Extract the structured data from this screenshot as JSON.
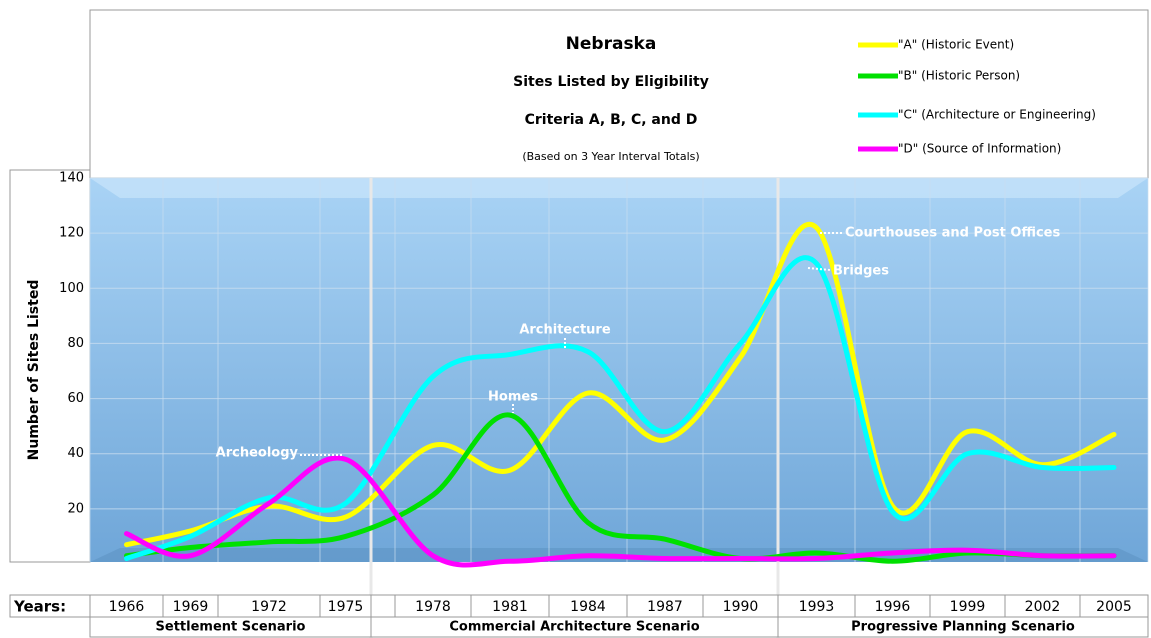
{
  "chart_data": {
    "type": "line",
    "title": "Nebraska",
    "subtitle": "Sites Listed by Eligibility",
    "subtitle2": "Criteria A, B, C, and D",
    "note": "(Based on 3 Year Interval Totals)",
    "y_label": "Number of Sites Listed",
    "x_label": "Years:",
    "categories": [
      "1966",
      "1969",
      "1972",
      "1975",
      "1978",
      "1981",
      "1984",
      "1987",
      "1990",
      "1993",
      "1996",
      "1999",
      "2002",
      "2005"
    ],
    "series": [
      {
        "name": "\"A\" (Historic Event)",
        "color": "#ffff00",
        "values": [
          7,
          12,
          21,
          17,
          43,
          34,
          62,
          45,
          75,
          122,
          21,
          48,
          36,
          47
        ]
      },
      {
        "name": "\"B\" (Historic Person)",
        "color": "#00e000",
        "values": [
          3,
          6,
          8,
          10,
          25,
          54,
          15,
          9,
          2,
          4,
          1,
          4,
          3,
          3
        ]
      },
      {
        "name": "\"C\" (Architecture or Engineering)",
        "color": "#00ffff",
        "values": [
          2,
          10,
          24,
          22,
          68,
          76,
          77,
          48,
          80,
          109,
          19,
          40,
          35,
          35
        ]
      },
      {
        "name": "\"D\" (Source of Information)",
        "color": "#ff00ff",
        "values": [
          11,
          3,
          22,
          38,
          3,
          1,
          3,
          2,
          2,
          2,
          4,
          5,
          3,
          3
        ]
      }
    ],
    "ylim": [
      0,
      140
    ],
    "yticks": [
      20,
      40,
      60,
      80,
      100,
      120,
      140
    ],
    "grid": true,
    "annotations": [
      "Courthouses and Post Offices",
      "Bridges",
      "Architecture",
      "Homes",
      "Archeology"
    ],
    "scenarios": [
      "Settlement Scenario",
      "Commercial Architecture Scenario",
      "Progressive Planning Scenario"
    ]
  }
}
